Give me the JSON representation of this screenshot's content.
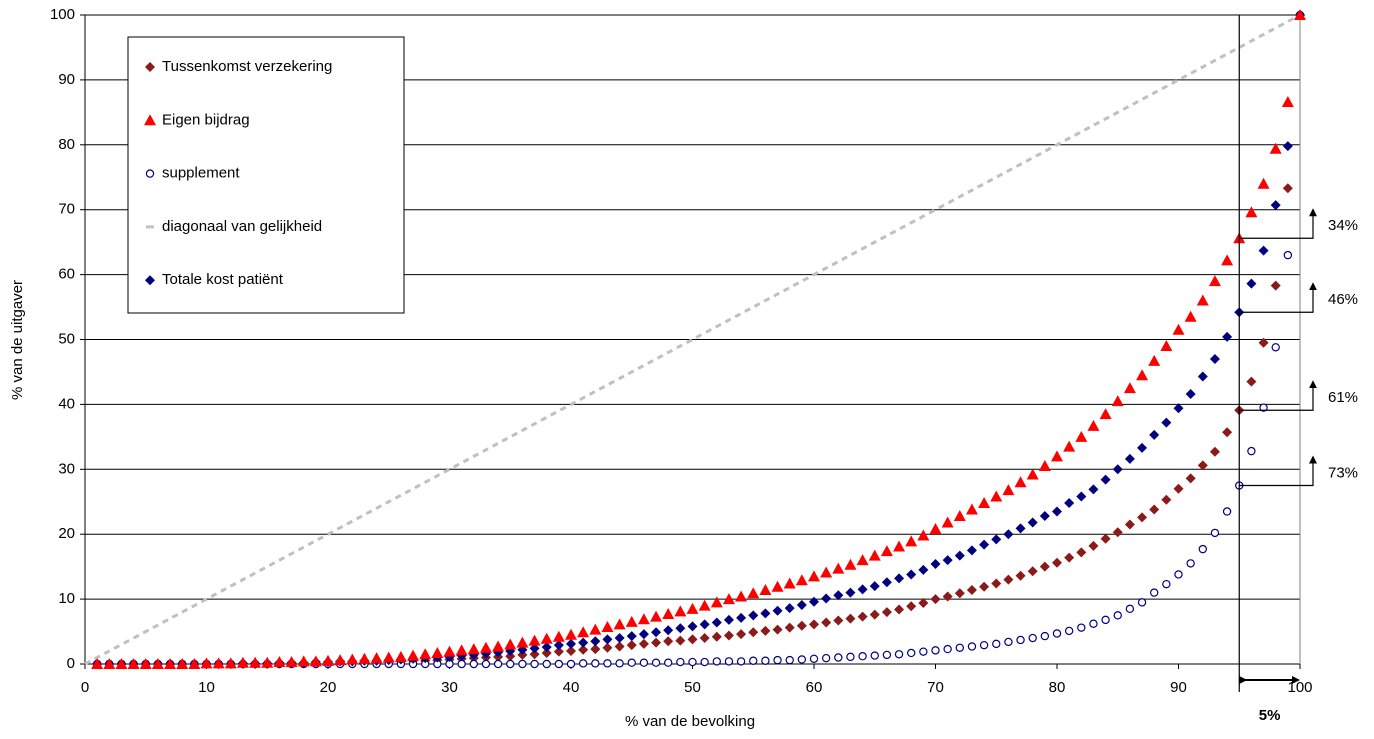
{
  "chart_data": {
    "type": "scatter",
    "x_label": "% van de bevolking",
    "y_label": "% van de uitgaver",
    "x": [
      1,
      2,
      3,
      4,
      5,
      6,
      7,
      8,
      9,
      10,
      11,
      12,
      13,
      14,
      15,
      16,
      17,
      18,
      19,
      20,
      21,
      22,
      23,
      24,
      25,
      26,
      27,
      28,
      29,
      30,
      31,
      32,
      33,
      34,
      35,
      36,
      37,
      38,
      39,
      40,
      41,
      42,
      43,
      44,
      45,
      46,
      47,
      48,
      49,
      50,
      51,
      52,
      53,
      54,
      55,
      56,
      57,
      58,
      59,
      60,
      61,
      62,
      63,
      64,
      65,
      66,
      67,
      68,
      69,
      70,
      71,
      72,
      73,
      74,
      75,
      76,
      77,
      78,
      79,
      80,
      81,
      82,
      83,
      84,
      85,
      86,
      87,
      88,
      89,
      90,
      91,
      92,
      93,
      94,
      95,
      96,
      97,
      98,
      99,
      100
    ],
    "series": [
      {
        "name": "Tussenkomst verzekering",
        "color": "#8b1a1a",
        "marker": "diamond",
        "values": [
          0,
          0,
          0,
          0,
          0,
          0,
          0,
          0,
          0,
          0,
          0,
          0,
          0,
          0,
          0,
          0.1,
          0.1,
          0.1,
          0.1,
          0.2,
          0.2,
          0.2,
          0.3,
          0.3,
          0.4,
          0.4,
          0.5,
          0.5,
          0.6,
          0.7,
          0.8,
          0.9,
          1,
          1.1,
          1.2,
          1.4,
          1.5,
          1.7,
          1.9,
          2,
          2.2,
          2.3,
          2.5,
          2.7,
          2.9,
          3.1,
          3.3,
          3.5,
          3.6,
          3.8,
          4,
          4.2,
          4.4,
          4.6,
          4.9,
          5.1,
          5.3,
          5.6,
          5.9,
          6.1,
          6.4,
          6.7,
          7,
          7.3,
          7.6,
          8,
          8.4,
          8.9,
          9.4,
          10,
          10.4,
          10.9,
          11.4,
          11.9,
          12.4,
          13,
          13.6,
          14.3,
          15,
          15.6,
          16.4,
          17.2,
          18.2,
          19.3,
          20.3,
          21.5,
          22.6,
          23.8,
          25.3,
          27,
          28.6,
          30.6,
          32.7,
          35.7,
          39.1,
          43.5,
          49.5,
          58.3,
          73.3,
          100
        ]
      },
      {
        "name": "Eigen bijdrag",
        "color": "#ff0000",
        "marker": "triangle",
        "values": [
          0,
          0,
          0,
          0,
          0,
          0,
          0,
          0,
          0,
          0.1,
          0.1,
          0.1,
          0.2,
          0.2,
          0.2,
          0.3,
          0.3,
          0.4,
          0.4,
          0.5,
          0.6,
          0.7,
          0.8,
          0.9,
          1,
          1.1,
          1.3,
          1.5,
          1.7,
          1.9,
          2.1,
          2.3,
          2.5,
          2.7,
          3,
          3.3,
          3.6,
          3.9,
          4.2,
          4.5,
          4.9,
          5.3,
          5.7,
          6.1,
          6.5,
          6.9,
          7.3,
          7.7,
          8.1,
          8.5,
          9,
          9.5,
          10,
          10.4,
          10.9,
          11.4,
          11.9,
          12.4,
          12.9,
          13.5,
          14.1,
          14.7,
          15.3,
          16,
          16.7,
          17.4,
          18.1,
          18.9,
          19.8,
          20.8,
          21.8,
          22.8,
          23.8,
          24.8,
          25.8,
          26.8,
          28,
          29.2,
          30.5,
          32,
          33.5,
          35,
          36.7,
          38.5,
          40.5,
          42.5,
          44.5,
          46.7,
          49,
          51.5,
          53.5,
          56,
          59,
          62.2,
          65.6,
          69.6,
          74,
          79.4,
          86.6,
          100
        ]
      },
      {
        "name": "supplement",
        "color": "#000080",
        "marker": "circle",
        "values": [
          0,
          0,
          0,
          0,
          0,
          0,
          0,
          0,
          0,
          0,
          0,
          0,
          0,
          0,
          0,
          0,
          0,
          0,
          0,
          0,
          0,
          0,
          0,
          0,
          0,
          0,
          0,
          0,
          0,
          0,
          0,
          0,
          0,
          0,
          0,
          0,
          0,
          0,
          0,
          0,
          0.1,
          0.1,
          0.1,
          0.1,
          0.2,
          0.2,
          0.2,
          0.2,
          0.3,
          0.3,
          0.3,
          0.4,
          0.4,
          0.4,
          0.5,
          0.5,
          0.6,
          0.6,
          0.7,
          0.8,
          0.9,
          1,
          1.1,
          1.2,
          1.3,
          1.4,
          1.5,
          1.7,
          1.9,
          2.1,
          2.3,
          2.5,
          2.7,
          2.9,
          3.1,
          3.4,
          3.7,
          4,
          4.3,
          4.7,
          5.1,
          5.6,
          6.2,
          6.8,
          7.5,
          8.5,
          9.5,
          11,
          12.3,
          13.8,
          15.5,
          17.7,
          20.2,
          23.5,
          27.5,
          32.8,
          39.5,
          48.8,
          63,
          100
        ]
      },
      {
        "name": "diagonaal van gelijkheid",
        "color": "#c0c0c0",
        "marker": "dash",
        "x": [
          0,
          100
        ],
        "values": [
          0,
          100
        ]
      },
      {
        "name": "Totale kost patiënt",
        "color": "#000080",
        "marker": "diamond",
        "values": [
          0,
          0,
          0,
          0,
          0,
          0,
          0,
          0,
          0,
          0,
          0,
          0,
          0.1,
          0.1,
          0.1,
          0.2,
          0.2,
          0.2,
          0.3,
          0.3,
          0.4,
          0.4,
          0.5,
          0.5,
          0.6,
          0.7,
          0.8,
          0.9,
          1,
          1.1,
          1.3,
          1.4,
          1.6,
          1.8,
          2,
          2.2,
          2.4,
          2.6,
          2.9,
          3.1,
          3.3,
          3.5,
          3.8,
          4,
          4.3,
          4.6,
          4.9,
          5.2,
          5.5,
          5.8,
          6.1,
          6.4,
          6.8,
          7.1,
          7.5,
          7.8,
          8.2,
          8.6,
          9.1,
          9.6,
          10.1,
          10.6,
          11,
          11.5,
          12,
          12.6,
          13.2,
          13.8,
          14.5,
          15.4,
          16,
          16.7,
          17.5,
          18.4,
          19.2,
          20,
          20.9,
          21.8,
          22.8,
          23.5,
          24.8,
          25.8,
          26.9,
          28.4,
          30,
          31.6,
          33.3,
          35.3,
          37.2,
          39.4,
          41.6,
          44.3,
          47,
          50.4,
          54.2,
          58.6,
          63.7,
          70.7,
          79.8,
          100
        ]
      }
    ],
    "xlim": [
      0,
      100
    ],
    "ylim": [
      0,
      100
    ],
    "xticks": [
      0,
      10,
      20,
      30,
      40,
      50,
      60,
      70,
      80,
      90,
      100
    ],
    "yticks": [
      0,
      10,
      20,
      30,
      40,
      50,
      60,
      70,
      80,
      90,
      100
    ],
    "grid": true,
    "legend": "upper left",
    "vline": 95,
    "bracket_label": "5%",
    "annotations": [
      {
        "text": "34%",
        "color": "#ff0000"
      },
      {
        "text": "46%",
        "color": "#000080"
      },
      {
        "text": "61%",
        "color": "#993300"
      },
      {
        "text": "73%",
        "color": "#3333ff"
      }
    ]
  }
}
